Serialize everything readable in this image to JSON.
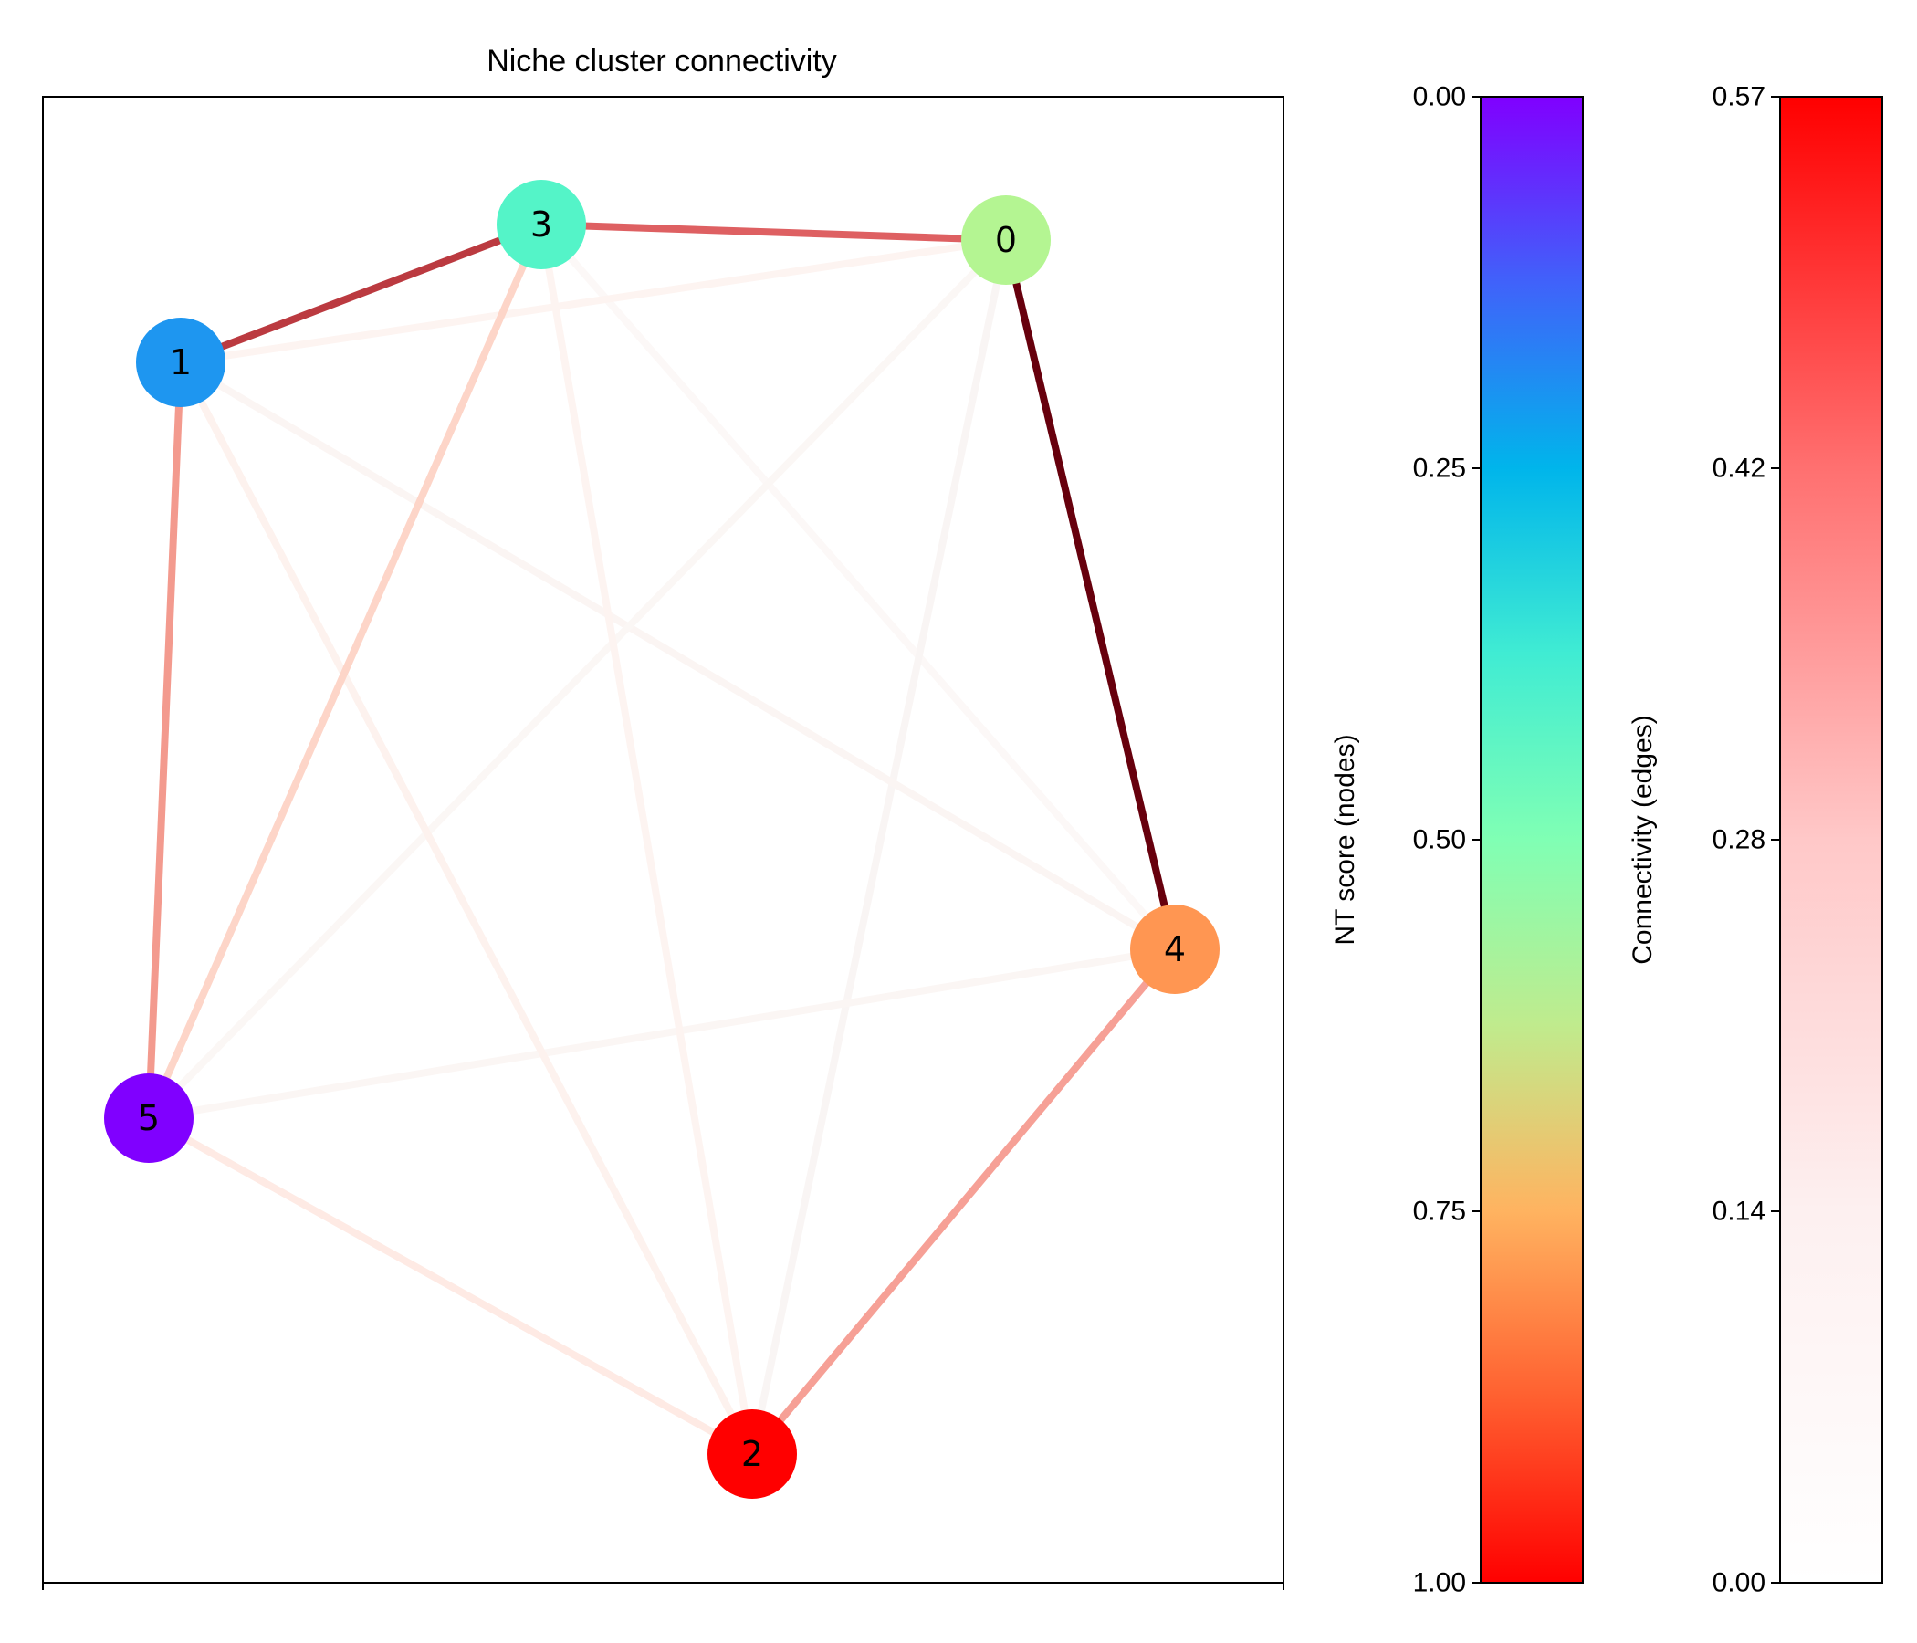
{
  "chart_data": {
    "type": "network",
    "title": "Niche cluster connectivity",
    "nodes": [
      {
        "id": "0",
        "nt_score": 0.6,
        "color": "#b4f592"
      },
      {
        "id": "1",
        "nt_score": 0.2,
        "color": "#1e96f0"
      },
      {
        "id": "2",
        "nt_score": 1.0,
        "color": "#ff0000"
      },
      {
        "id": "3",
        "nt_score": 0.4,
        "color": "#54f4c8"
      },
      {
        "id": "4",
        "nt_score": 0.8,
        "color": "#ff9652"
      },
      {
        "id": "5",
        "nt_score": 0.0,
        "color": "#8000ff"
      }
    ],
    "edges": [
      {
        "source": "0",
        "target": "4",
        "connectivity": 0.57,
        "color": "#67000d"
      },
      {
        "source": "1",
        "target": "3",
        "connectivity": 0.42,
        "color": "#bb3a40"
      },
      {
        "source": "0",
        "target": "3",
        "connectivity": 0.36,
        "color": "#de6062"
      },
      {
        "source": "1",
        "target": "5",
        "connectivity": 0.27,
        "color": "#f39a8e"
      },
      {
        "source": "2",
        "target": "4",
        "connectivity": 0.26,
        "color": "#f6a096"
      },
      {
        "source": "3",
        "target": "5",
        "connectivity": 0.11,
        "color": "#fdd5c8"
      },
      {
        "source": "2",
        "target": "5",
        "connectivity": 0.05,
        "color": "#feeae4"
      },
      {
        "source": "1",
        "target": "2",
        "connectivity": 0.03,
        "color": "#fdf2ee"
      },
      {
        "source": "2",
        "target": "3",
        "connectivity": 0.02,
        "color": "#fdf4f1"
      },
      {
        "source": "0",
        "target": "1",
        "connectivity": 0.02,
        "color": "#fdf4f1"
      },
      {
        "source": "0",
        "target": "2",
        "connectivity": 0.01,
        "color": "#f9f5f4"
      },
      {
        "source": "1",
        "target": "4",
        "connectivity": 0.01,
        "color": "#fbf5f3"
      },
      {
        "source": "4",
        "target": "5",
        "connectivity": 0.01,
        "color": "#fbf6f4"
      },
      {
        "source": "0",
        "target": "5",
        "connectivity": 0.01,
        "color": "#fbf7f5"
      },
      {
        "source": "3",
        "target": "4",
        "connectivity": 0.005,
        "color": "#fcf8f7"
      }
    ],
    "colorbars": [
      {
        "label": "NT score (nodes)",
        "colormap": "rainbow",
        "range": [
          0.0,
          1.0
        ],
        "inverted": true,
        "ticks": [
          "0.00",
          "0.25",
          "0.50",
          "0.75",
          "1.00"
        ]
      },
      {
        "label": "Connectivity (edges)",
        "colormap": "white-to-red",
        "range": [
          0.0,
          0.57
        ],
        "inverted": false,
        "ticks": [
          "0.00",
          "0.14",
          "0.28",
          "0.42",
          "0.57"
        ]
      }
    ]
  }
}
